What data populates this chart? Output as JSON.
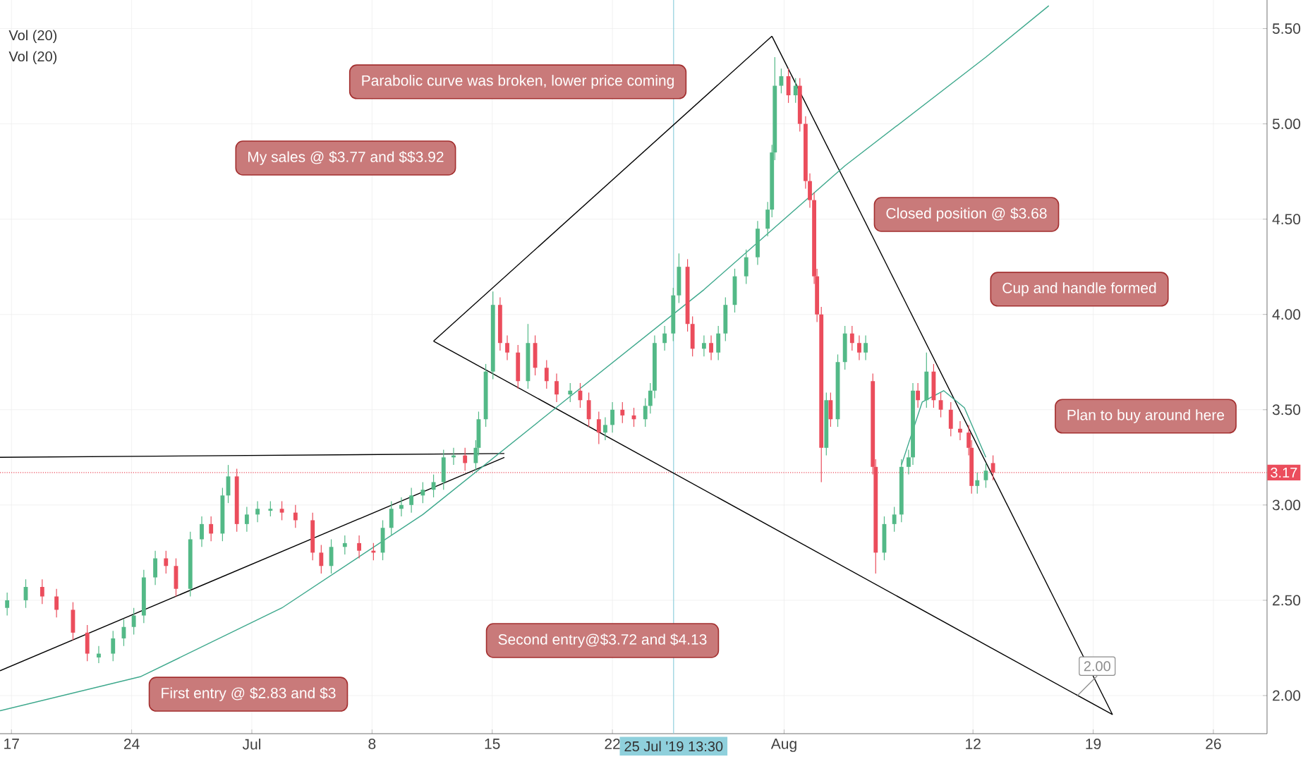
{
  "chart_data": {
    "type": "candlestick",
    "x": [
      "2019-06-16T18:00",
      "2019-06-17T20:00",
      "2019-06-18T19:00",
      "2019-06-19T15:00",
      "2019-06-20T14:00",
      "2019-06-21T10:00",
      "2019-06-22T02:00",
      "2019-06-22T22:00",
      "2019-06-23T13:00",
      "2019-06-24T03:00",
      "2019-06-24T17:00",
      "2019-06-25T09:00",
      "2019-06-26T00:00",
      "2019-06-26T14:00",
      "2019-06-27T10:00",
      "2019-06-28T02:00",
      "2019-06-28T15:00",
      "2019-06-29T07:00",
      "2019-06-29T15:00",
      "2019-06-30T03:00",
      "2019-06-30T17:00",
      "2019-07-01T08:00",
      "2019-07-02T02:00",
      "2019-07-02T18:00",
      "2019-07-03T13:00",
      "2019-07-04T13:00",
      "2019-07-05T01:00",
      "2019-07-05T15:00",
      "2019-07-06T10:00",
      "2019-07-07T06:00",
      "2019-07-08T02:00",
      "2019-07-08T15:00",
      "2019-07-09T03:00",
      "2019-07-09T17:00",
      "2019-07-10T07:00",
      "2019-07-10T23:00",
      "2019-07-11T14:00",
      "2019-07-12T04:00",
      "2019-07-12T18:00",
      "2019-07-13T10:00",
      "2019-07-14T01:00",
      "2019-07-14T05:00",
      "2019-07-14T15:00",
      "2019-07-15T01:00",
      "2019-07-15T11:00",
      "2019-07-15T21:00",
      "2019-07-16T12:00",
      "2019-07-17T02:00",
      "2019-07-17T12:00",
      "2019-07-18T04:00",
      "2019-07-18T18:00",
      "2019-07-19T13:00",
      "2019-07-20T03:00",
      "2019-07-20T15:00",
      "2019-07-21T05:00",
      "2019-07-21T14:00",
      "2019-07-22T00:00",
      "2019-07-22T14:00",
      "2019-07-23T06:00",
      "2019-07-23T22:00",
      "2019-07-24T05:00",
      "2019-07-24T11:00",
      "2019-07-25T01:00",
      "2019-07-25T13:00",
      "2019-07-25T21:00",
      "2019-07-26T09:00",
      "2019-07-26T16:00",
      "2019-07-27T08:00",
      "2019-07-27T18:00",
      "2019-07-28T04:00",
      "2019-07-28T14:00",
      "2019-07-29T03:00",
      "2019-07-29T19:00",
      "2019-07-30T11:00",
      "2019-07-31T01:00",
      "2019-07-31T07:00",
      "2019-07-31T11:00",
      "2019-07-31T20:00",
      "2019-08-01T06:00",
      "2019-08-01T16:00",
      "2019-08-01T22:00",
      "2019-08-02T06:00",
      "2019-08-02T12:00",
      "2019-08-02T18:00",
      "2019-08-02T22:00",
      "2019-08-03T04:00",
      "2019-08-03T11:00",
      "2019-08-03T17:00",
      "2019-08-04T03:00",
      "2019-08-04T13:00",
      "2019-08-04T23:00",
      "2019-08-05T09:00",
      "2019-08-05T18:00",
      "2019-08-06T04:00",
      "2019-08-06T08:00",
      "2019-08-06T20:00",
      "2019-08-07T10:00",
      "2019-08-07T20:00",
      "2019-08-08T06:00",
      "2019-08-08T12:00",
      "2019-08-08T19:00",
      "2019-08-09T07:00",
      "2019-08-09T17:00",
      "2019-08-10T03:00",
      "2019-08-10T17:00",
      "2019-08-11T06:00",
      "2019-08-11T18:00",
      "2019-08-11T22:00",
      "2019-08-12T06:00",
      "2019-08-12T18:00",
      "2019-08-13T04:00"
    ],
    "ohlc": [
      [
        2.46,
        2.54,
        2.42,
        2.5
      ],
      [
        2.5,
        2.61,
        2.46,
        2.57
      ],
      [
        2.57,
        2.61,
        2.48,
        2.52
      ],
      [
        2.52,
        2.56,
        2.41,
        2.45
      ],
      [
        2.45,
        2.49,
        2.29,
        2.33
      ],
      [
        2.33,
        2.37,
        2.18,
        2.22
      ],
      [
        2.2,
        2.26,
        2.17,
        2.22
      ],
      [
        2.22,
        2.34,
        2.18,
        2.3
      ],
      [
        2.3,
        2.4,
        2.26,
        2.36
      ],
      [
        2.36,
        2.46,
        2.32,
        2.42
      ],
      [
        2.42,
        2.66,
        2.38,
        2.62
      ],
      [
        2.62,
        2.76,
        2.58,
        2.72
      ],
      [
        2.72,
        2.76,
        2.64,
        2.68
      ],
      [
        2.68,
        2.72,
        2.52,
        2.56
      ],
      [
        2.56,
        2.86,
        2.52,
        2.82
      ],
      [
        2.82,
        2.94,
        2.78,
        2.9
      ],
      [
        2.9,
        2.94,
        2.81,
        2.85
      ],
      [
        2.85,
        3.09,
        2.81,
        3.05
      ],
      [
        3.05,
        3.21,
        3.01,
        3.15
      ],
      [
        3.15,
        3.19,
        2.86,
        2.9
      ],
      [
        2.9,
        2.99,
        2.86,
        2.95
      ],
      [
        2.95,
        3.02,
        2.91,
        2.98
      ],
      [
        2.97,
        3.02,
        2.94,
        2.98
      ],
      [
        2.98,
        3.02,
        2.92,
        2.96
      ],
      [
        2.96,
        3.0,
        2.88,
        2.92
      ],
      [
        2.92,
        2.96,
        2.71,
        2.75
      ],
      [
        2.75,
        2.79,
        2.64,
        2.68
      ],
      [
        2.68,
        2.82,
        2.64,
        2.78
      ],
      [
        2.78,
        2.84,
        2.74,
        2.8
      ],
      [
        2.8,
        2.84,
        2.72,
        2.76
      ],
      [
        2.76,
        2.8,
        2.71,
        2.75
      ],
      [
        2.75,
        2.92,
        2.71,
        2.88
      ],
      [
        2.88,
        3.02,
        2.84,
        2.98
      ],
      [
        2.98,
        3.04,
        2.94,
        3.0
      ],
      [
        3.0,
        3.09,
        2.96,
        3.05
      ],
      [
        3.05,
        3.12,
        3.01,
        3.08
      ],
      [
        3.08,
        3.16,
        3.04,
        3.12
      ],
      [
        3.12,
        3.29,
        3.08,
        3.25
      ],
      [
        3.25,
        3.3,
        3.21,
        3.26
      ],
      [
        3.26,
        3.3,
        3.18,
        3.22
      ],
      [
        3.22,
        3.34,
        3.18,
        3.3
      ],
      [
        3.3,
        3.49,
        3.26,
        3.45
      ],
      [
        3.45,
        3.74,
        3.41,
        3.7
      ],
      [
        3.7,
        4.12,
        3.66,
        4.05
      ],
      [
        4.05,
        4.09,
        3.81,
        3.85
      ],
      [
        3.85,
        3.89,
        3.76,
        3.8
      ],
      [
        3.8,
        3.84,
        3.61,
        3.65
      ],
      [
        3.65,
        3.95,
        3.61,
        3.85
      ],
      [
        3.85,
        3.89,
        3.68,
        3.72
      ],
      [
        3.72,
        3.76,
        3.61,
        3.65
      ],
      [
        3.65,
        3.69,
        3.54,
        3.58
      ],
      [
        3.58,
        3.64,
        3.54,
        3.6
      ],
      [
        3.6,
        3.64,
        3.51,
        3.55
      ],
      [
        3.55,
        3.59,
        3.41,
        3.45
      ],
      [
        3.45,
        3.49,
        3.32,
        3.38
      ],
      [
        3.38,
        3.46,
        3.34,
        3.42
      ],
      [
        3.42,
        3.54,
        3.38,
        3.5
      ],
      [
        3.5,
        3.54,
        3.43,
        3.47
      ],
      [
        3.47,
        3.51,
        3.41,
        3.45
      ],
      [
        3.45,
        3.56,
        3.41,
        3.52
      ],
      [
        3.52,
        3.64,
        3.48,
        3.6
      ],
      [
        3.6,
        3.89,
        3.56,
        3.85
      ],
      [
        3.85,
        3.94,
        3.81,
        3.9
      ],
      [
        3.9,
        4.14,
        3.86,
        4.1
      ],
      [
        4.1,
        4.32,
        4.06,
        4.25
      ],
      [
        4.25,
        4.29,
        3.91,
        3.95
      ],
      [
        3.95,
        3.99,
        3.78,
        3.82
      ],
      [
        3.82,
        3.89,
        3.78,
        3.85
      ],
      [
        3.85,
        3.89,
        3.76,
        3.8
      ],
      [
        3.8,
        3.94,
        3.76,
        3.9
      ],
      [
        3.9,
        4.09,
        3.86,
        4.05
      ],
      [
        4.05,
        4.24,
        4.01,
        4.2
      ],
      [
        4.2,
        4.34,
        4.16,
        4.3
      ],
      [
        4.3,
        4.49,
        4.26,
        4.45
      ],
      [
        4.45,
        4.59,
        4.41,
        4.55
      ],
      [
        4.55,
        4.89,
        4.51,
        4.85
      ],
      [
        4.85,
        5.35,
        4.81,
        5.2
      ],
      [
        5.2,
        5.29,
        5.16,
        5.25
      ],
      [
        5.25,
        5.29,
        5.11,
        5.15
      ],
      [
        5.15,
        5.24,
        5.11,
        5.2
      ],
      [
        5.2,
        5.24,
        4.96,
        5.0
      ],
      [
        5.0,
        5.04,
        4.66,
        4.7
      ],
      [
        4.7,
        4.74,
        4.56,
        4.6
      ],
      [
        4.6,
        4.64,
        4.16,
        4.2
      ],
      [
        4.2,
        4.24,
        3.96,
        4.0
      ],
      [
        4.0,
        4.04,
        3.12,
        3.3
      ],
      [
        3.3,
        3.59,
        3.26,
        3.55
      ],
      [
        3.55,
        3.59,
        3.41,
        3.45
      ],
      [
        3.45,
        3.79,
        3.41,
        3.75
      ],
      [
        3.75,
        3.94,
        3.71,
        3.9
      ],
      [
        3.9,
        3.94,
        3.81,
        3.85
      ],
      [
        3.85,
        3.89,
        3.76,
        3.8
      ],
      [
        3.8,
        3.89,
        3.76,
        3.85
      ],
      [
        3.65,
        3.69,
        3.16,
        3.2
      ],
      [
        3.2,
        3.24,
        2.64,
        2.75
      ],
      [
        2.75,
        2.94,
        2.71,
        2.9
      ],
      [
        2.9,
        2.99,
        2.86,
        2.95
      ],
      [
        2.95,
        3.24,
        2.91,
        3.2
      ],
      [
        3.2,
        3.29,
        3.16,
        3.25
      ],
      [
        3.25,
        3.64,
        3.21,
        3.6
      ],
      [
        3.6,
        3.64,
        3.51,
        3.55
      ],
      [
        3.55,
        3.8,
        3.51,
        3.7
      ],
      [
        3.7,
        3.74,
        3.51,
        3.55
      ],
      [
        3.55,
        3.59,
        3.46,
        3.5
      ],
      [
        3.5,
        3.54,
        3.36,
        3.4
      ],
      [
        3.4,
        3.44,
        3.34,
        3.38
      ],
      [
        3.38,
        3.42,
        3.26,
        3.3
      ],
      [
        3.3,
        3.34,
        3.06,
        3.1
      ],
      [
        3.1,
        3.17,
        3.06,
        3.13
      ],
      [
        3.13,
        3.22,
        3.09,
        3.18
      ],
      [
        3.22,
        3.26,
        3.13,
        3.17
      ]
    ],
    "colors": [
      "#53b987",
      "#53b987",
      "#eb4d5c",
      "#eb4d5c",
      "#eb4d5c",
      "#eb4d5c",
      "#53b987",
      "#53b987",
      "#53b987",
      "#53b987",
      "#53b987",
      "#53b987",
      "#eb4d5c",
      "#eb4d5c",
      "#53b987",
      "#53b987",
      "#eb4d5c",
      "#53b987",
      "#53b987",
      "#eb4d5c",
      "#53b987",
      "#53b987",
      "#53b987",
      "#eb4d5c",
      "#eb4d5c",
      "#eb4d5c",
      "#eb4d5c",
      "#53b987",
      "#53b987",
      "#eb4d5c",
      "#eb4d5c",
      "#53b987",
      "#53b987",
      "#53b987",
      "#53b987",
      "#53b987",
      "#53b987",
      "#53b987",
      "#53b987",
      "#eb4d5c",
      "#53b987",
      "#53b987",
      "#53b987",
      "#53b987",
      "#eb4d5c",
      "#eb4d5c",
      "#eb4d5c",
      "#53b987",
      "#eb4d5c",
      "#eb4d5c",
      "#eb4d5c",
      "#53b987",
      "#eb4d5c",
      "#eb4d5c",
      "#eb4d5c",
      "#53b987",
      "#53b987",
      "#eb4d5c",
      "#eb4d5c",
      "#53b987",
      "#53b987",
      "#53b987",
      "#53b987",
      "#53b987",
      "#53b987",
      "#eb4d5c",
      "#eb4d5c",
      "#53b987",
      "#eb4d5c",
      "#53b987",
      "#53b987",
      "#53b987",
      "#53b987",
      "#53b987",
      "#53b987",
      "#53b987",
      "#53b987",
      "#53b987",
      "#eb4d5c",
      "#53b987",
      "#eb4d5c",
      "#eb4d5c",
      "#eb4d5c",
      "#eb4d5c",
      "#eb4d5c",
      "#eb4d5c",
      "#53b987",
      "#eb4d5c",
      "#53b987",
      "#53b987",
      "#eb4d5c",
      "#eb4d5c",
      "#53b987",
      "#eb4d5c",
      "#eb4d5c",
      "#53b987",
      "#53b987",
      "#53b987",
      "#53b987",
      "#53b987",
      "#eb4d5c",
      "#53b987",
      "#eb4d5c",
      "#eb4d5c",
      "#eb4d5c",
      "#eb4d5c",
      "#eb4d5c",
      "#eb4d5c",
      "#53b987",
      "#53b987",
      "#eb4d5c"
    ],
    "series": [
      {
        "type": "line",
        "color": "#000000",
        "x": [
          "2019-06-16T08:00",
          "2019-07-15T17:00"
        ],
        "values": [
          3.25,
          3.27
        ]
      },
      {
        "type": "line",
        "color": "#000000",
        "x": [
          "2019-06-16T08:00",
          "2019-07-15T17:00"
        ],
        "values": [
          2.13,
          3.25
        ]
      },
      {
        "type": "line",
        "color": "#000000",
        "x": [
          "2019-07-11T14:00",
          "2019-07-31T07:00"
        ],
        "values": [
          3.86,
          5.46
        ]
      },
      {
        "type": "line",
        "color": "#000000",
        "x": [
          "2019-07-11T14:00",
          "2019-08-20T03:00"
        ],
        "values": [
          3.86,
          1.9
        ]
      },
      {
        "type": "line",
        "color": "#000000",
        "x": [
          "2019-07-31T07:00",
          "2019-08-20T03:00"
        ],
        "values": [
          5.46,
          1.9
        ]
      },
      {
        "type": "line",
        "color": "#3da88c",
        "x": [
          "2019-06-16T08:00",
          "2019-06-24T13:00",
          "2019-07-02T18:00",
          "2019-07-10T23:00",
          "2019-07-19T03:00",
          "2019-07-27T08:00",
          "2019-08-04T13:00",
          "2019-08-12T18:00",
          "2019-08-16T10:00"
        ],
        "values": [
          1.92,
          2.1,
          2.46,
          2.95,
          3.54,
          4.13,
          4.78,
          5.35,
          5.62
        ]
      },
      {
        "type": "line",
        "color": "#3da88c",
        "x": [
          "2019-08-07T20:00",
          "2019-08-09T01:00",
          "2019-08-10T07:00",
          "2019-08-11T12:00",
          "2019-08-12T18:00"
        ],
        "values": [
          3.21,
          3.54,
          3.6,
          3.51,
          3.25
        ]
      }
    ],
    "xlim": [
      "2019-06-16T08:00",
      "2019-08-29T03:00"
    ],
    "xticks": [
      {
        "value": "2019-06-17",
        "label": "17"
      },
      {
        "value": "2019-06-24",
        "label": "24"
      },
      {
        "value": "2019-07-01",
        "label": "Jul"
      },
      {
        "value": "2019-07-08",
        "label": "8"
      },
      {
        "value": "2019-07-15",
        "label": "15"
      },
      {
        "value": "2019-07-22",
        "label": "22"
      },
      {
        "value": "2019-08-01",
        "label": "Aug"
      },
      {
        "value": "2019-08-12",
        "label": "12"
      },
      {
        "value": "2019-08-19",
        "label": "19"
      },
      {
        "value": "2019-08-26",
        "label": "26"
      }
    ],
    "ylim": [
      1.8,
      5.65
    ],
    "yticks": [
      {
        "value": 2.0,
        "label": "2.00"
      },
      {
        "value": 2.5,
        "label": "2.50"
      },
      {
        "value": 3.0,
        "label": "3.00"
      },
      {
        "value": 3.5,
        "label": "3.50"
      },
      {
        "value": 4.0,
        "label": "4.00"
      },
      {
        "value": 4.5,
        "label": "4.50"
      },
      {
        "value": 5.0,
        "label": "5.00"
      },
      {
        "value": 5.5,
        "label": "5.50"
      }
    ],
    "grid": true,
    "ref_lines": [
      {
        "axis": "y",
        "value": 3.17,
        "label": "3.17",
        "color": "#eb4d5c",
        "line_style": "dotted"
      },
      {
        "axis": "x",
        "value": "2019-07-25T13:30",
        "label": "25 Jul '19 13:30",
        "color": "#8fd0dc"
      }
    ],
    "annotations": [
      "Vol (20)",
      "Vol (20)",
      "Parabolic curve was broken, lower price coming",
      "My sales @ $3.77 and $$3.92",
      "Closed position @ $3.68",
      "Cup and handle formed",
      "Plan to buy around here",
      "Second entry@$3.72 and $4.13",
      "First entry @ $2.83 and $3",
      {
        "text": "2.00",
        "x": "2019-08-18T02:00",
        "y": 2.0
      }
    ]
  }
}
